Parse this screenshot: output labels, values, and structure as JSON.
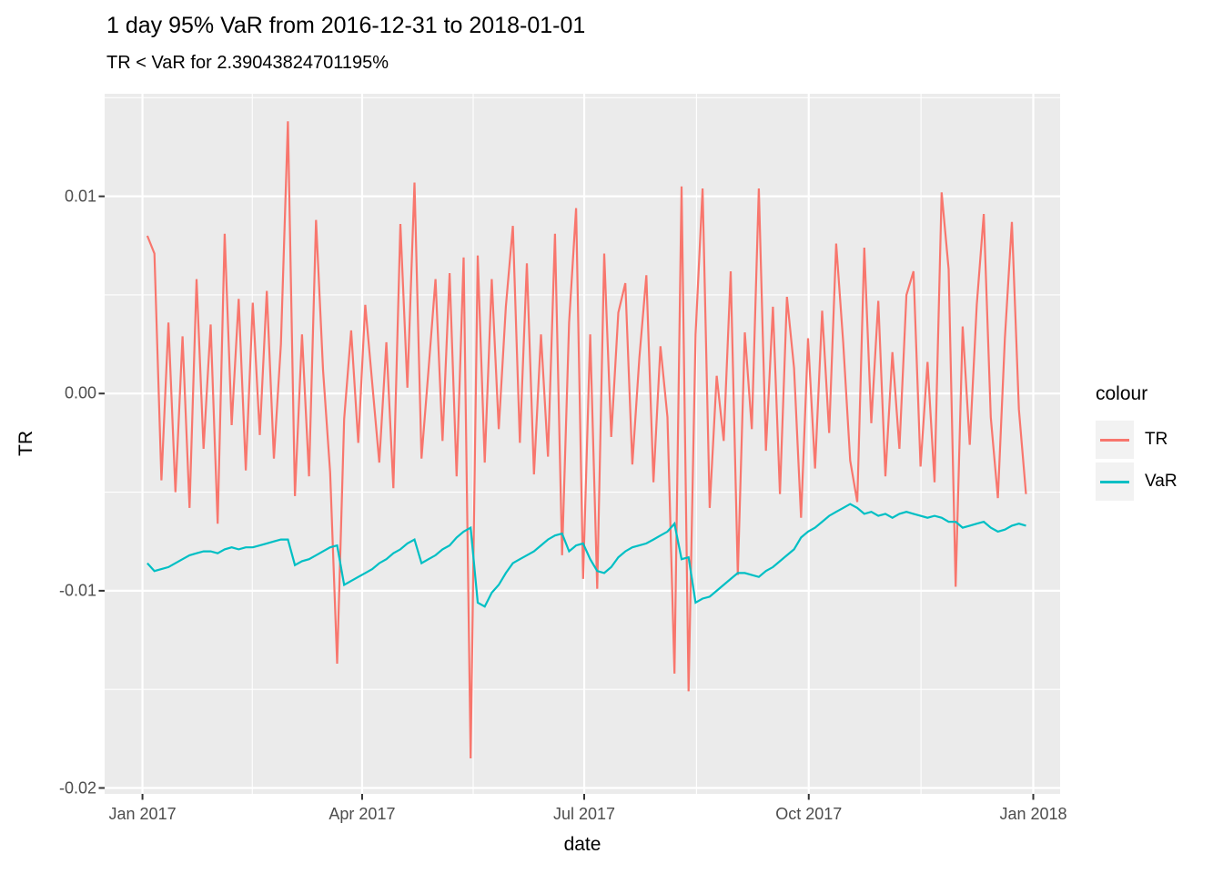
{
  "chart_data": {
    "type": "line",
    "title": "1 day 95% VaR from 2016-12-31 to 2018-01-01",
    "subtitle": "TR < VaR for 2.39043824701195%",
    "xlabel": "date",
    "ylabel": "TR",
    "panel_bg": "#EBEBEB",
    "grid_color": "#FFFFFF",
    "tick_mark_color": "#333333",
    "axis_text_color": "#4D4D4D",
    "legend": {
      "title": "colour",
      "key_fill": "#F2F2F2"
    },
    "x_axis": {
      "domain_days": [
        -15.5,
        376
      ],
      "ticks": [
        {
          "day": 0,
          "label": "Jan 2017"
        },
        {
          "day": 90,
          "label": "Apr 2017"
        },
        {
          "day": 181,
          "label": "Jul 2017"
        },
        {
          "day": 273,
          "label": "Oct 2017"
        },
        {
          "day": 365,
          "label": "Jan 2018"
        }
      ],
      "minor_days": [
        45,
        135.5,
        227,
        319
      ]
    },
    "y_axis": {
      "domain": [
        -0.0203,
        0.0152
      ],
      "ticks": [
        {
          "value": 0.01,
          "label": "0.01"
        },
        {
          "value": 0.0,
          "label": "0.00"
        },
        {
          "value": -0.01,
          "label": "-0.01"
        },
        {
          "value": -0.02,
          "label": "-0.02"
        }
      ],
      "minor_values": [
        0.015,
        0.005,
        -0.005,
        -0.015
      ]
    },
    "series": [
      {
        "name": "TR",
        "color": "#F8766D",
        "x_day_start": 2,
        "x_day_end": 362,
        "values": [
          0.008,
          0.0071,
          -0.0044,
          0.0036,
          -0.005,
          0.0029,
          -0.0058,
          0.0058,
          -0.0028,
          0.0035,
          -0.0066,
          0.0081,
          -0.0016,
          0.0048,
          -0.0039,
          0.0046,
          -0.0021,
          0.0052,
          -0.0033,
          0.0025,
          0.0138,
          -0.0052,
          0.003,
          -0.0042,
          0.0088,
          0.0012,
          -0.004,
          -0.0137,
          -0.0013,
          0.0032,
          -0.0025,
          0.0045,
          0.0005,
          -0.0035,
          0.0026,
          -0.0048,
          0.0086,
          0.0003,
          0.0107,
          -0.0033,
          0.0012,
          0.0058,
          -0.0024,
          0.0061,
          -0.0042,
          0.0069,
          -0.0185,
          0.007,
          -0.0035,
          0.0058,
          -0.0018,
          0.0044,
          0.0085,
          -0.0025,
          0.0066,
          -0.0041,
          0.003,
          -0.0032,
          0.0081,
          -0.0082,
          0.0036,
          0.0094,
          -0.0094,
          0.003,
          -0.0099,
          0.0071,
          -0.0022,
          0.0041,
          0.0056,
          -0.0036,
          0.0018,
          0.006,
          -0.0045,
          0.0024,
          -0.0012,
          -0.0142,
          0.0105,
          -0.0151,
          0.003,
          0.0104,
          -0.0058,
          0.0009,
          -0.0024,
          0.0062,
          -0.0092,
          0.0031,
          -0.0018,
          0.0104,
          -0.0029,
          0.0044,
          -0.0051,
          0.0049,
          0.0013,
          -0.0063,
          0.0028,
          -0.0038,
          0.0042,
          -0.002,
          0.0076,
          0.0026,
          -0.0034,
          -0.0055,
          0.0074,
          -0.0015,
          0.0047,
          -0.0042,
          0.0021,
          -0.0028,
          0.005,
          0.0062,
          -0.0037,
          0.0016,
          -0.0045,
          0.0102,
          0.0063,
          -0.0098,
          0.0034,
          -0.0026,
          0.0045,
          0.0091,
          -0.0012,
          -0.0053,
          0.0028,
          0.0087,
          -0.0008,
          -0.0051
        ]
      },
      {
        "name": "VaR",
        "color": "#00BFC4",
        "x_day_start": 2,
        "x_day_end": 362,
        "values": [
          -0.0086,
          -0.009,
          -0.0089,
          -0.0088,
          -0.0086,
          -0.0084,
          -0.0082,
          -0.0081,
          -0.008,
          -0.008,
          -0.0081,
          -0.0079,
          -0.0078,
          -0.0079,
          -0.0078,
          -0.0078,
          -0.0077,
          -0.0076,
          -0.0075,
          -0.0074,
          -0.0074,
          -0.0087,
          -0.0085,
          -0.0084,
          -0.0082,
          -0.008,
          -0.0078,
          -0.0077,
          -0.0097,
          -0.0095,
          -0.0093,
          -0.0091,
          -0.0089,
          -0.0086,
          -0.0084,
          -0.0081,
          -0.0079,
          -0.0076,
          -0.0074,
          -0.0086,
          -0.0084,
          -0.0082,
          -0.0079,
          -0.0077,
          -0.0073,
          -0.007,
          -0.0068,
          -0.0106,
          -0.0108,
          -0.0101,
          -0.0097,
          -0.0091,
          -0.0086,
          -0.0084,
          -0.0082,
          -0.008,
          -0.0077,
          -0.0074,
          -0.0072,
          -0.0071,
          -0.008,
          -0.0077,
          -0.0076,
          -0.0084,
          -0.009,
          -0.0091,
          -0.0088,
          -0.0083,
          -0.008,
          -0.0078,
          -0.0077,
          -0.0076,
          -0.0074,
          -0.0072,
          -0.007,
          -0.0066,
          -0.0084,
          -0.0083,
          -0.0106,
          -0.0104,
          -0.0103,
          -0.01,
          -0.0097,
          -0.0094,
          -0.0091,
          -0.0091,
          -0.0092,
          -0.0093,
          -0.009,
          -0.0088,
          -0.0085,
          -0.0082,
          -0.0079,
          -0.0073,
          -0.007,
          -0.0068,
          -0.0065,
          -0.0062,
          -0.006,
          -0.0058,
          -0.0056,
          -0.0058,
          -0.0061,
          -0.006,
          -0.0062,
          -0.0061,
          -0.0063,
          -0.0061,
          -0.006,
          -0.0061,
          -0.0062,
          -0.0063,
          -0.0062,
          -0.0063,
          -0.0065,
          -0.0065,
          -0.0068,
          -0.0067,
          -0.0066,
          -0.0065,
          -0.0068,
          -0.007,
          -0.0069,
          -0.0067,
          -0.0066,
          -0.0067
        ]
      }
    ]
  }
}
